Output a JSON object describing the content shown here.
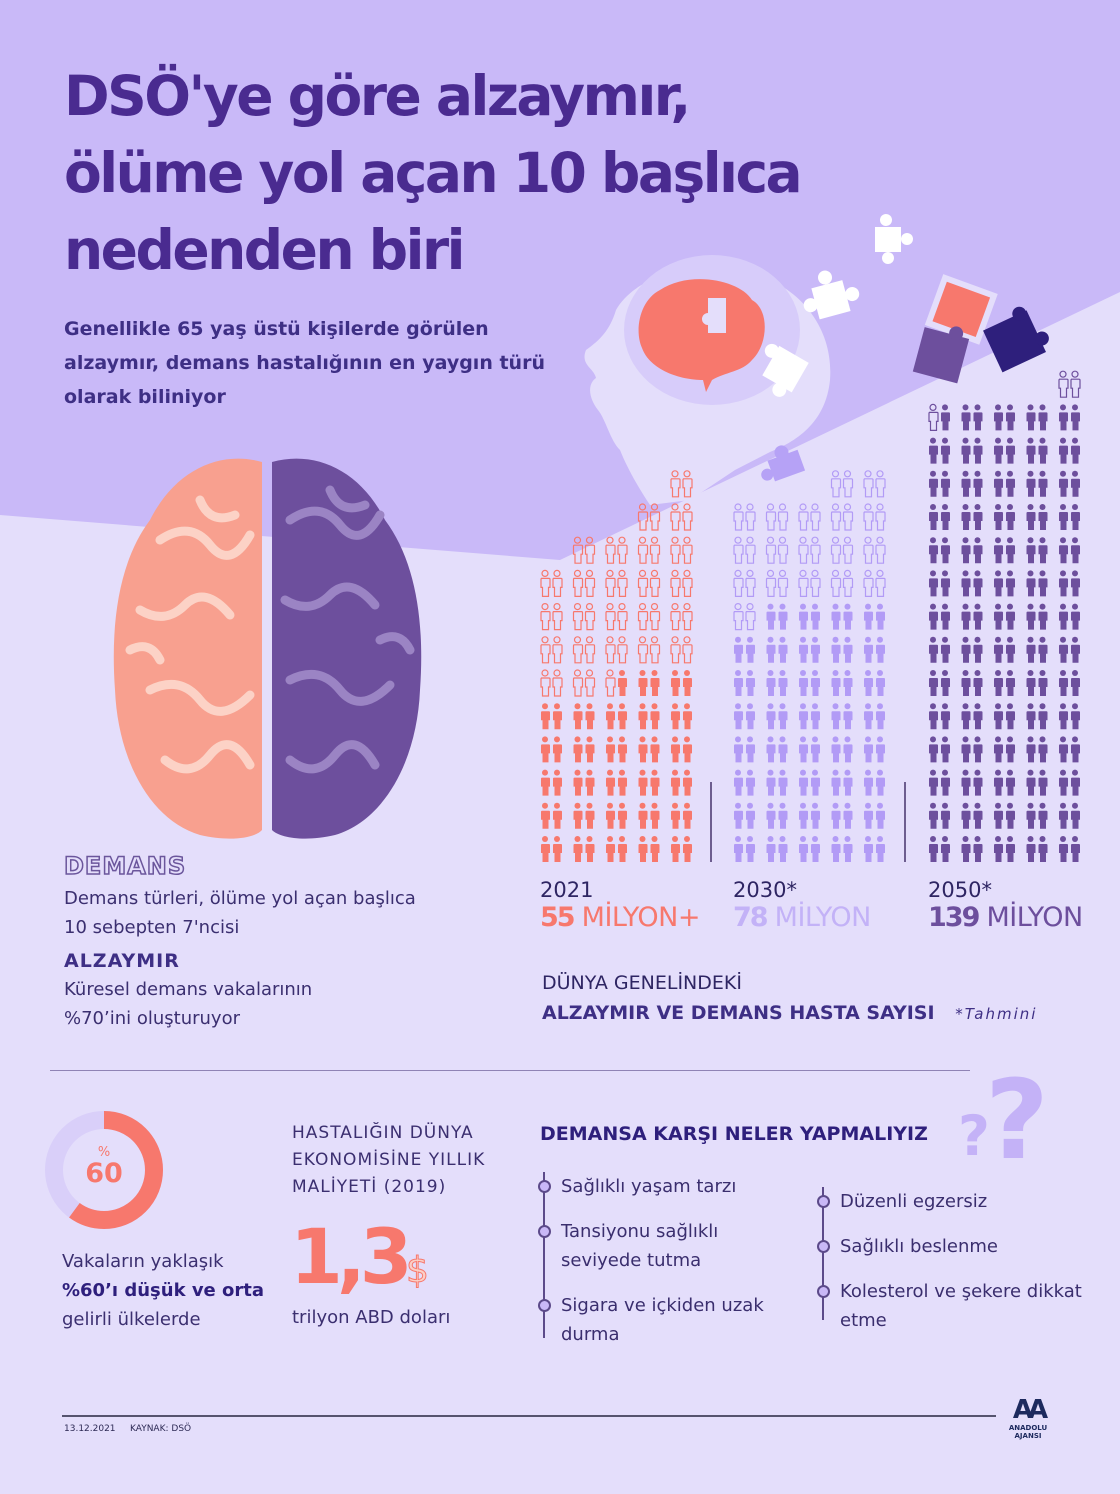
{
  "header": {
    "title_lines": [
      "DSÖ'ye göre alzaymır,",
      "ölüme yol açan 10 başlıca",
      "nedenden biri"
    ],
    "subtitle_lines": [
      "Genellikle 65 yaş üstü kişilerde görülen",
      "alzaymır, demans hastalığının en yaygın türü",
      "olarak biliniyor"
    ]
  },
  "colors": {
    "bg_top": "#c9b9f8",
    "bg_bottom": "#e4defb",
    "title": "#4a2b90",
    "coral": "#f7786d",
    "light_purple": "#b29bf6",
    "dark_purple": "#6d4f9d",
    "navy": "#2e1f7c"
  },
  "dementia": {
    "heading": "DEMANS",
    "text_lines": [
      "Demans türleri, ölüme yol açan başlıca",
      "10 sebepten 7'ncisi"
    ],
    "alz_heading": "ALZAYMIR",
    "alz_lines": [
      "Küresel demans vakalarının",
      "%70’ini oluşturuyor"
    ]
  },
  "chart_data": {
    "type": "pictogram",
    "title_lines": [
      "DÜNYA GENELİNDEKİ",
      "ALZAYMIR VE DEMANS HASTA SAYISI"
    ],
    "footnote": "*Tahmini",
    "unit": "MİLYON",
    "groups": [
      {
        "year": "2021",
        "value": 55,
        "value_label": "55",
        "unit_label": "MİLYON+",
        "color": "#f7786d",
        "column_heights": [
          9,
          9,
          10,
          10,
          10,
          10,
          11,
          11,
          12,
          12
        ]
      },
      {
        "year": "2030*",
        "value": 78,
        "value_label": "78",
        "unit_label": "MİLYON",
        "color": "#b29bf6",
        "column_heights": [
          11,
          11,
          11,
          11,
          11,
          11,
          12,
          12,
          12,
          12
        ]
      },
      {
        "year": "2050*",
        "value": 139,
        "value_label": "139",
        "unit_label": "MİLYON",
        "color": "#6d4f9d",
        "column_heights": [
          14,
          14,
          14,
          14,
          14,
          14,
          14,
          14,
          15,
          15
        ]
      }
    ]
  },
  "income": {
    "donut_percent": 60,
    "pct_sign": "%",
    "pct_value": "60",
    "lines": [
      "Vakaların yaklaşık",
      "%60’ı düşük ve orta",
      "gelirli ülkelerde"
    ]
  },
  "cost": {
    "heading_lines": [
      "HASTALIĞIN DÜNYA",
      "EKONOMİSİNE YILLIK",
      "MALİYETİ (2019)"
    ],
    "value": "1,3",
    "currency": "$",
    "unit": "trilyon ABD doları"
  },
  "actions": {
    "heading": "DEMANSA KARŞI NELER YAPMALIYIZ",
    "left": [
      "Sağlıklı yaşam tarzı",
      "Tansiyonu sağlıklı seviyede tutma",
      "Sigara ve içkiden uzak durma"
    ],
    "right": [
      "Düzenli egzersiz",
      "Sağlıklı beslenme",
      "Kolesterol ve şekere dikkat etme"
    ]
  },
  "footer": {
    "date": "13.12.2021",
    "source": "KAYNAK: DSÖ",
    "logo_text": "AA",
    "logo_caption": "ANADOLU AJANSI"
  }
}
